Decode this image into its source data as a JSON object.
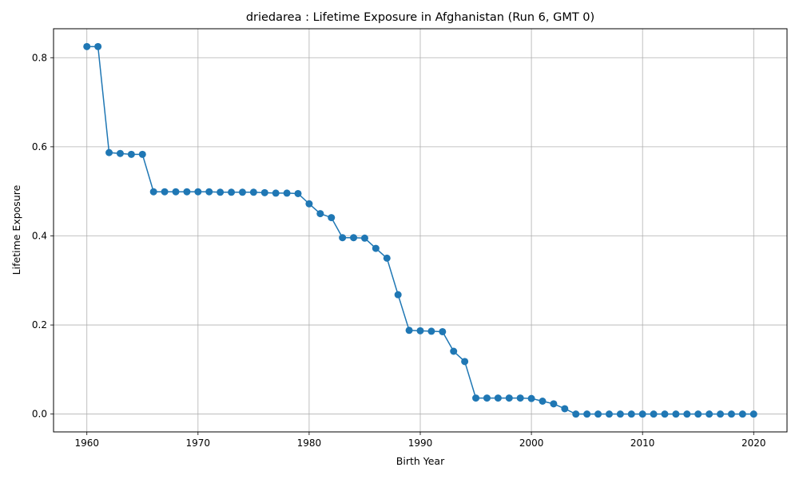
{
  "chart_data": {
    "type": "line",
    "title": "driedarea : Lifetime Exposure in Afghanistan (Run 6, GMT 0)",
    "xlabel": "Birth Year",
    "ylabel": "Lifetime Exposure",
    "xlim": [
      1957,
      2023
    ],
    "ylim": [
      -0.04,
      0.865
    ],
    "xticks": [
      1960,
      1970,
      1980,
      1990,
      2000,
      2010,
      2020
    ],
    "yticks": [
      0.0,
      0.2,
      0.4,
      0.6,
      0.8
    ],
    "ytick_labels": [
      "0.0",
      "0.2",
      "0.4",
      "0.6",
      "0.8"
    ],
    "grid": true,
    "color": "#1f77b4",
    "marker": "circle",
    "x": [
      1960,
      1961,
      1962,
      1963,
      1964,
      1965,
      1966,
      1967,
      1968,
      1969,
      1970,
      1971,
      1972,
      1973,
      1974,
      1975,
      1976,
      1977,
      1978,
      1979,
      1980,
      1981,
      1982,
      1983,
      1984,
      1985,
      1986,
      1987,
      1988,
      1989,
      1990,
      1991,
      1992,
      1993,
      1994,
      1995,
      1996,
      1997,
      1998,
      1999,
      2000,
      2001,
      2002,
      2003,
      2004,
      2005,
      2006,
      2007,
      2008,
      2009,
      2010,
      2011,
      2012,
      2013,
      2014,
      2015,
      2016,
      2017,
      2018,
      2019,
      2020
    ],
    "y": [
      0.825,
      0.825,
      0.587,
      0.585,
      0.583,
      0.583,
      0.499,
      0.499,
      0.499,
      0.499,
      0.499,
      0.499,
      0.498,
      0.498,
      0.498,
      0.498,
      0.497,
      0.496,
      0.496,
      0.495,
      0.472,
      0.45,
      0.441,
      0.396,
      0.396,
      0.395,
      0.372,
      0.35,
      0.268,
      0.188,
      0.187,
      0.186,
      0.185,
      0.141,
      0.118,
      0.036,
      0.036,
      0.036,
      0.036,
      0.036,
      0.035,
      0.029,
      0.023,
      0.012,
      0.0,
      0.0,
      0.0,
      0.0,
      0.0,
      0.0,
      0.0,
      0.0,
      0.0,
      0.0,
      0.0,
      0.0,
      0.0,
      0.0,
      0.0,
      0.0,
      0.0
    ]
  }
}
